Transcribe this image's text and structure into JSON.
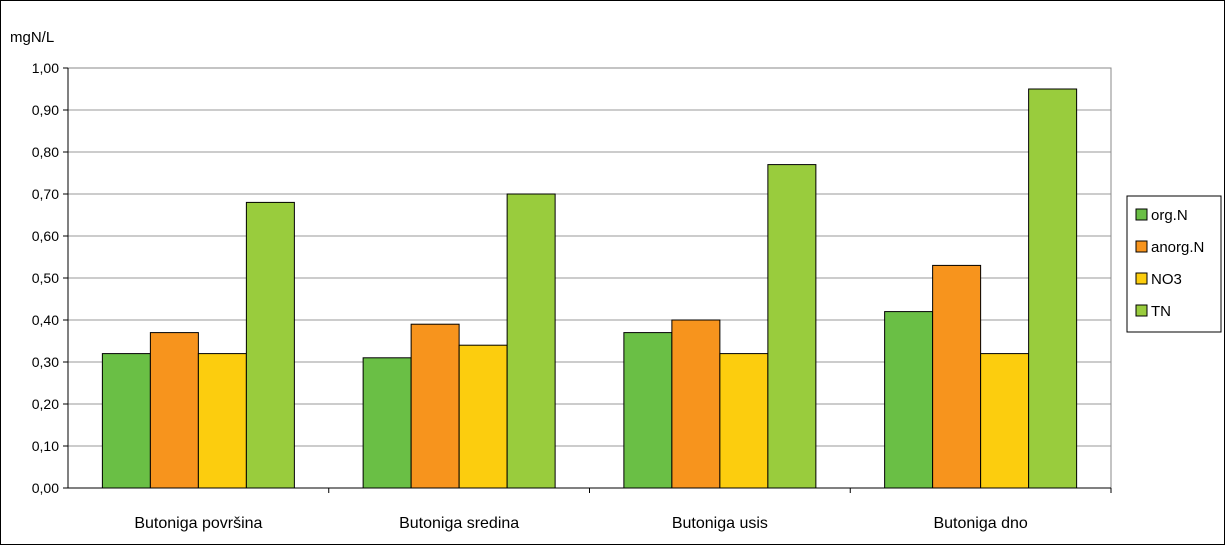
{
  "chart_data": {
    "type": "bar",
    "ylabel": "mgN/L",
    "xlabel": "",
    "title": "",
    "ylim": [
      0,
      1.0
    ],
    "y_ticks": [
      "0,00",
      "0,10",
      "0,20",
      "0,30",
      "0,40",
      "0,50",
      "0,60",
      "0,70",
      "0,80",
      "0,90",
      "1,00"
    ],
    "grid": true,
    "legend_position": "right",
    "categories": [
      "Butoniga površina",
      "Butoniga sredina",
      "Butoniga usis",
      "Butoniga dno"
    ],
    "series": [
      {
        "name": "org.N",
        "color": "#6abf45",
        "values": [
          0.32,
          0.31,
          0.37,
          0.42
        ]
      },
      {
        "name": "anorg.N",
        "color": "#f7941d",
        "values": [
          0.37,
          0.39,
          0.4,
          0.53
        ]
      },
      {
        "name": "NO3",
        "color": "#fccd0e",
        "values": [
          0.32,
          0.34,
          0.32,
          0.32
        ]
      },
      {
        "name": "TN",
        "color": "#99cc3d",
        "values": [
          0.68,
          0.7,
          0.77,
          0.95
        ]
      }
    ]
  }
}
